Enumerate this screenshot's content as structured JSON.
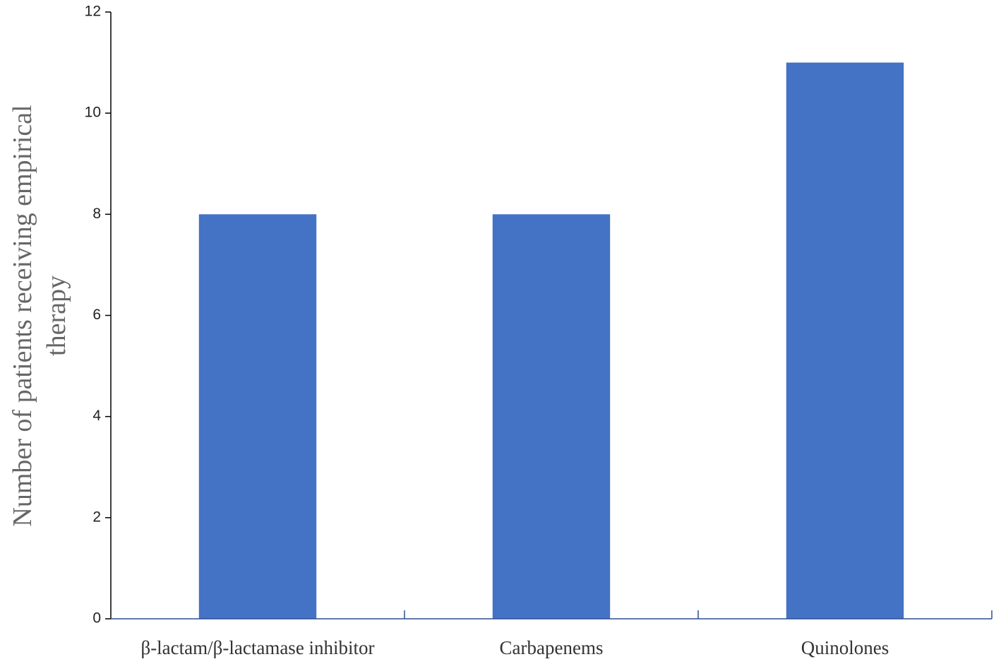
{
  "chart_data": {
    "type": "bar",
    "y_label": [
      "Number of patients receiving empirical",
      "therapy"
    ],
    "categories": [
      "β-lactam/β-lactamase inhibitor",
      "Carbapenems",
      "Quinolones"
    ],
    "values": [
      8,
      8,
      11
    ],
    "color": "#4472c4",
    "ylim": [
      0,
      12
    ],
    "yticks": [
      0,
      2,
      4,
      6,
      8,
      10,
      12
    ],
    "grid": false
  }
}
